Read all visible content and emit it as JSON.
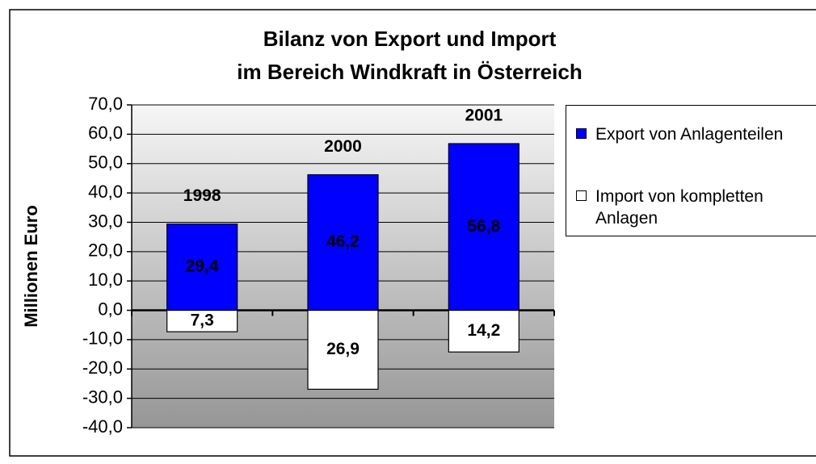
{
  "chart_data": {
    "type": "bar",
    "title": "Bilanz von Export und Import",
    "subtitle": "im Bereich Windkraft in Österreich",
    "y_label": "Millionen Euro",
    "categories": [
      "1998",
      "2000",
      "2001"
    ],
    "series": [
      {
        "name": "Export von Anlagenteilen",
        "color": "#0000ff",
        "label_color": "#ffffff",
        "values": [
          29.4,
          46.2,
          56.8
        ],
        "value_labels": [
          "29,4",
          "46,2",
          "56,8"
        ]
      },
      {
        "name": "Import von kompletten Anlagen",
        "color": "#ffffff",
        "label_color": "#000000",
        "values": [
          -7.3,
          -26.9,
          -14.2
        ],
        "value_labels": [
          "7,3",
          "26,9",
          "14,2"
        ]
      }
    ],
    "ylim": [
      -40,
      70
    ],
    "yticks": [
      {
        "value": -40,
        "label": "-40,0"
      },
      {
        "value": -30,
        "label": "-30,0"
      },
      {
        "value": -20,
        "label": "-20,0"
      },
      {
        "value": -10,
        "label": "-10,0"
      },
      {
        "value": 0,
        "label": "0,0"
      },
      {
        "value": 10,
        "label": "10,0"
      },
      {
        "value": 20,
        "label": "20,0"
      },
      {
        "value": 30,
        "label": "30,0"
      },
      {
        "value": 40,
        "label": "40,0"
      },
      {
        "value": 50,
        "label": "50,0"
      },
      {
        "value": 60,
        "label": "60,0"
      },
      {
        "value": 70,
        "label": "70,0"
      }
    ],
    "grid": true,
    "legend": "right"
  }
}
